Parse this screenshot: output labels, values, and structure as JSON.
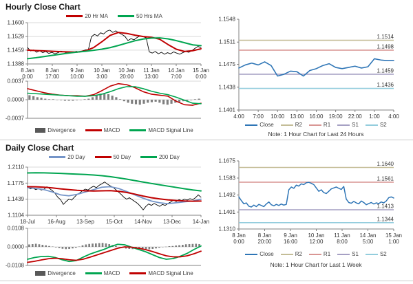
{
  "page": {
    "hourly_title": "Hourly Close Chart",
    "daily_title": "Daily Close Chart",
    "note_24h": "Note: 1 Hour Chart for Last 24 Hours",
    "note_1week": "Note: 1 Hour Chart for Last 1 Week"
  },
  "colors": {
    "price_line": "#000000",
    "red": "#C00000",
    "green": "#00A550",
    "ma20_blue": "#7494C8",
    "close_blue": "#2E75B6",
    "r2_olive": "#C4BD97",
    "r1_pink": "#D99694",
    "s1_purple": "#A6A0C4",
    "s2_cyan": "#93CDDD",
    "divergence_gray": "#7F7F7F",
    "grid": "#D9D9D9",
    "axis": "#808080",
    "label_text": "#333333"
  },
  "chart_data": {
    "hourly_price": {
      "type": "line",
      "title": "Hourly Close Chart",
      "ylim": [
        1.1388,
        1.16
      ],
      "grid": true,
      "yticks": [
        {
          "label": "1.1600",
          "value": 1.16
        },
        {
          "label": "1.1529",
          "value": 1.1529
        },
        {
          "label": "1.1459",
          "value": 1.1459
        },
        {
          "label": "1.1388",
          "value": 1.1388
        }
      ],
      "xticks": [
        [
          "8 Jan",
          "0:00"
        ],
        [
          "8 Jan",
          "17:00"
        ],
        [
          "9 Jan",
          "10:00"
        ],
        [
          "10 Jan",
          "3:00"
        ],
        [
          "10 Jan",
          "20:00"
        ],
        [
          "11 Jan",
          "13:00"
        ],
        [
          "14 Jan",
          "7:00"
        ],
        [
          "15 Jan",
          "0:00"
        ]
      ],
      "series": [
        {
          "name": "Close",
          "color": "#000000",
          "width": 0.9,
          "values": [
            1.1472,
            1.1455,
            1.146,
            1.1448,
            1.1456,
            1.1446,
            1.1452,
            1.1442,
            1.1448,
            1.144,
            1.1446,
            1.1454,
            1.145,
            1.1444,
            1.145,
            1.1446,
            1.1453,
            1.1448,
            1.1455,
            1.146,
            1.1462,
            1.1528,
            1.154,
            1.1532,
            1.1548,
            1.1542,
            1.1556,
            1.1562,
            1.155,
            1.1558,
            1.1548,
            1.154,
            1.153,
            1.1508,
            1.1518,
            1.1512,
            1.1524,
            1.1532,
            1.1528,
            1.1522,
            1.145,
            1.1444,
            1.1452,
            1.144,
            1.1448,
            1.1438,
            1.1446,
            1.144,
            1.145,
            1.1444,
            1.1438,
            1.1446,
            1.1452,
            1.1448,
            1.1456,
            1.1468,
            1.1478,
            1.1472
          ]
        },
        {
          "name": "20 Hr MA",
          "color": "#C00000",
          "width": 2,
          "values": [
            1.1459,
            1.1457,
            1.1455,
            1.1453,
            1.1451,
            1.145,
            1.1449,
            1.1455,
            1.1472,
            1.1502,
            1.1535,
            1.155,
            1.1545,
            1.1536,
            1.1529,
            1.1525,
            1.1515,
            1.1488,
            1.1464,
            1.1452,
            1.1456,
            1.1466
          ]
        },
        {
          "name": "50 Hrs MA",
          "color": "#00A550",
          "width": 2,
          "values": [
            1.1415,
            1.142,
            1.1426,
            1.1432,
            1.1438,
            1.1444,
            1.1449,
            1.1453,
            1.1458,
            1.1464,
            1.1472,
            1.1483,
            1.1495,
            1.1507,
            1.1516,
            1.1521,
            1.1522,
            1.1517,
            1.1508,
            1.1497,
            1.1486,
            1.1482
          ]
        }
      ]
    },
    "hourly_macd": {
      "type": "line+bar",
      "ylim": [
        -0.0037,
        0.0037
      ],
      "grid": true,
      "yticks": [
        {
          "label": "0.0037",
          "value": 0.0037
        },
        {
          "label": "0.0000",
          "value": 0.0
        },
        {
          "label": "-0.0037",
          "value": -0.0037
        }
      ],
      "xticks": [],
      "bars": {
        "name": "Divergence",
        "color": "#7F7F7F",
        "swatch": "#595959",
        "values": [
          0.0009,
          0.0007,
          0.0005,
          0.0004,
          0.0002,
          0.0001,
          0.0001,
          0.0,
          -0.0001,
          -0.0002,
          -0.0002,
          -0.0002,
          -0.0001,
          0.0,
          0.0001,
          0.0002,
          0.0005,
          0.0009,
          0.0012,
          0.0013,
          0.0011,
          0.0008,
          0.0005,
          0.0001,
          -0.0003,
          -0.0006,
          -0.0008,
          -0.0009,
          -0.001,
          -0.0008,
          -0.0006,
          -0.0005,
          -0.0004,
          -0.0006,
          -0.0009,
          -0.001,
          -0.0008,
          -0.0006,
          -0.0005,
          -0.0003,
          -0.0002,
          -0.0001,
          0.0001,
          0.0002
        ]
      },
      "series": [
        {
          "name": "MACD",
          "color": "#C00000",
          "width": 1.6,
          "values": [
            0.0022,
            0.0018,
            0.0014,
            0.0011,
            0.0009,
            0.0008,
            0.0008,
            0.0007,
            0.001,
            0.0018,
            0.0027,
            0.0032,
            0.003,
            0.0024,
            0.0016,
            0.0011,
            0.0009,
            0.0007,
            -0.0003,
            -0.001,
            -0.0011,
            -0.0007
          ]
        },
        {
          "name": "MACD Signal Line",
          "color": "#00A550",
          "width": 1.6,
          "values": [
            0.0013,
            0.0012,
            0.0011,
            0.001,
            0.0009,
            0.0008,
            0.0007,
            0.0007,
            0.0008,
            0.0011,
            0.0016,
            0.0022,
            0.0026,
            0.0026,
            0.0022,
            0.0017,
            0.0013,
            0.001,
            0.0005,
            -0.0001,
            -0.0007,
            -0.0008
          ]
        }
      ]
    },
    "last_24_hours": {
      "type": "line",
      "note": "Note: 1 Hour Chart for Last 24 Hours",
      "ylim": [
        1.1401,
        1.1548
      ],
      "grid": false,
      "yticks": [
        {
          "label": "1.1548",
          "value": 1.1548
        },
        {
          "label": "1.1511",
          "value": 1.1511
        },
        {
          "label": "1.1475",
          "value": 1.1475
        },
        {
          "label": "1.1438",
          "value": 1.1438
        },
        {
          "label": "1.1401",
          "value": 1.1401
        }
      ],
      "xticks": [
        "4:00",
        "7:00",
        "10:00",
        "13:00",
        "16:00",
        "19:00",
        "22:00",
        "1:00",
        "4:00"
      ],
      "levels": [
        {
          "name": "R2",
          "label": "1.1514",
          "value": 1.1514,
          "color": "#C4BD97"
        },
        {
          "name": "R1",
          "label": "1.1498",
          "value": 1.1498,
          "color": "#D99694"
        },
        {
          "name": "S1",
          "label": "1.1459",
          "value": 1.1459,
          "color": "#A6A0C4"
        },
        {
          "name": "S2",
          "label": "1.1436",
          "value": 1.1436,
          "color": "#93CDDD"
        }
      ],
      "series": [
        {
          "name": "Close",
          "color": "#2E75B6",
          "width": 1.6,
          "values": [
            1.1469,
            1.1474,
            1.1477,
            1.1474,
            1.1479,
            1.1473,
            1.1456,
            1.1459,
            1.1464,
            1.1463,
            1.1456,
            1.1465,
            1.1468,
            1.1473,
            1.1476,
            1.147,
            1.1468,
            1.147,
            1.1472,
            1.1469,
            1.1471,
            1.1484,
            1.1482,
            1.1481,
            1.1481
          ]
        }
      ]
    },
    "daily_price": {
      "type": "line",
      "title": "Daily Close Chart",
      "ylim": [
        1.1104,
        1.211
      ],
      "grid": true,
      "yticks": [
        {
          "label": "1.2110",
          "value": 1.211
        },
        {
          "label": "1.1775",
          "value": 1.1775
        },
        {
          "label": "1.1439",
          "value": 1.1439
        },
        {
          "label": "1.1104",
          "value": 1.1104
        }
      ],
      "xticks": [
        "18-Jul",
        "16-Aug",
        "13-Sep",
        "15-Oct",
        "14-Nov",
        "13-Dec",
        "14-Jan"
      ],
      "series": [
        {
          "name": "Close",
          "color": "#000000",
          "width": 0.9,
          "values": [
            1.169,
            1.1655,
            1.167,
            1.164,
            1.166,
            1.163,
            1.165,
            1.17,
            1.166,
            1.162,
            1.156,
            1.148,
            1.143,
            1.133,
            1.139,
            1.144,
            1.142,
            1.148,
            1.154,
            1.157,
            1.162,
            1.165,
            1.163,
            1.168,
            1.171,
            1.168,
            1.173,
            1.176,
            1.18,
            1.1755,
            1.172,
            1.169,
            1.164,
            1.159,
            1.154,
            1.148,
            1.144,
            1.147,
            1.143,
            1.139,
            1.135,
            1.129,
            1.1215,
            1.129,
            1.134,
            1.131,
            1.135,
            1.132,
            1.129,
            1.133,
            1.131,
            1.135,
            1.138,
            1.142,
            1.139,
            1.143,
            1.141,
            1.144,
            1.142,
            1.145,
            1.143,
            1.147,
            1.153,
            1.148
          ]
        },
        {
          "name": "20 Day",
          "color": "#7494C8",
          "width": 1.8,
          "values": [
            1.168,
            1.1665,
            1.164,
            1.159,
            1.153,
            1.151,
            1.154,
            1.159,
            1.164,
            1.169,
            1.17,
            1.1665,
            1.16,
            1.153,
            1.146,
            1.14,
            1.1365,
            1.1345,
            1.1365,
            1.1385,
            1.14,
            1.144
          ]
        },
        {
          "name": "50 Day",
          "color": "#C00000",
          "width": 2,
          "values": [
            1.17,
            1.1698,
            1.169,
            1.1675,
            1.1655,
            1.164,
            1.1625,
            1.1615,
            1.161,
            1.1615,
            1.1618,
            1.1605,
            1.158,
            1.1545,
            1.1505,
            1.147,
            1.1445,
            1.1425,
            1.1412,
            1.1402,
            1.1396,
            1.14
          ]
        },
        {
          "name": "200 Day",
          "color": "#00A550",
          "width": 2,
          "values": [
            1.1988,
            1.1992,
            1.199,
            1.1985,
            1.1978,
            1.197,
            1.1962,
            1.1955,
            1.1945,
            1.193,
            1.191,
            1.1885,
            1.1858,
            1.1828,
            1.1798,
            1.1768,
            1.174,
            1.1712,
            1.1685,
            1.1658,
            1.1632,
            1.1612
          ]
        }
      ]
    },
    "daily_macd": {
      "type": "line+bar",
      "ylim": [
        -0.0108,
        0.0108
      ],
      "grid": true,
      "yticks": [
        {
          "label": "0.0108",
          "value": 0.0108
        },
        {
          "label": "0.0000",
          "value": 0.0
        },
        {
          "label": "-0.0108",
          "value": -0.0108
        }
      ],
      "xticks": [],
      "bars": {
        "name": "Divergence",
        "color": "#7F7F7F",
        "swatch": "#595959",
        "values": [
          0.0014,
          0.0016,
          0.0018,
          0.0015,
          0.0012,
          0.0009,
          0.0005,
          0.0002,
          -0.0003,
          -0.0007,
          -0.0011,
          -0.0013,
          -0.0012,
          -0.0009,
          -0.0005,
          0.0002,
          0.0009,
          0.0014,
          0.0017,
          0.0019,
          0.002,
          0.0022,
          0.0023,
          0.002,
          0.0016,
          0.0011,
          0.0005,
          -0.0001,
          -0.0006,
          -0.001,
          -0.0012,
          -0.0013,
          -0.0012,
          -0.001,
          -0.0011,
          -0.0013,
          -0.0014,
          -0.0012,
          -0.0009,
          -0.0005,
          -0.0002,
          0.0001,
          0.0004,
          0.0005,
          0.0008,
          0.001,
          0.0012,
          0.0015,
          0.0016,
          0.0017,
          0.0018,
          0.0016
        ]
      },
      "series": [
        {
          "name": "MACD",
          "color": "#00A550",
          "width": 1.8,
          "values": [
            -0.0072,
            -0.0062,
            -0.0056,
            -0.0055,
            -0.0062,
            -0.0075,
            -0.0085,
            -0.008,
            -0.006,
            -0.0042,
            -0.0028,
            -0.0015,
            0.0002,
            0.0015,
            0.0012,
            -0.0002,
            -0.0015,
            -0.0028,
            -0.0045,
            -0.0062,
            -0.0072,
            -0.0068,
            -0.0055,
            -0.0038,
            -0.0015,
            0.0005
          ]
        },
        {
          "name": "MACD Signal Line",
          "color": "#C00000",
          "width": 1.8,
          "values": [
            -0.009,
            -0.0084,
            -0.0076,
            -0.0069,
            -0.0066,
            -0.0069,
            -0.0075,
            -0.0078,
            -0.0072,
            -0.006,
            -0.0047,
            -0.0034,
            -0.0021,
            -0.0008,
            0.0,
            -0.0002,
            -0.0008,
            -0.0016,
            -0.0027,
            -0.004,
            -0.0052,
            -0.0058,
            -0.0058,
            -0.0052,
            -0.004,
            -0.0025
          ]
        }
      ]
    },
    "last_1_week": {
      "type": "line",
      "note": "Note: 1 Hour Chart for Last 1 Week",
      "ylim": [
        1.131,
        1.1675
      ],
      "grid": false,
      "yticks": [
        {
          "label": "1.1675",
          "value": 1.1675
        },
        {
          "label": "1.1583",
          "value": 1.1583
        },
        {
          "label": "1.1492",
          "value": 1.1492
        },
        {
          "label": "1.1401",
          "value": 1.1401
        },
        {
          "label": "1.1310",
          "value": 1.131
        }
      ],
      "xticks": [
        [
          "8 Jan",
          "0:00"
        ],
        [
          "8 Jan",
          "20:00"
        ],
        [
          "9 Jan",
          "16:00"
        ],
        [
          "10 Jan",
          "12:00"
        ],
        [
          "11 Jan",
          "8:00"
        ],
        [
          "14 Jan",
          "5:00"
        ],
        [
          "15 Jan",
          "1:00"
        ]
      ],
      "levels": [
        {
          "name": "R2",
          "label": "1.1640",
          "value": 1.164,
          "color": "#C4BD97"
        },
        {
          "name": "R1",
          "label": "1.1561",
          "value": 1.1561,
          "color": "#D99694"
        },
        {
          "name": "S1",
          "label": "1.1413",
          "value": 1.1413,
          "color": "#A6A0C4"
        },
        {
          "name": "S2",
          "label": "1.1344",
          "value": 1.1344,
          "color": "#93CDDD"
        }
      ],
      "series": [
        {
          "name": "Close",
          "color": "#2E75B6",
          "width": 1.5,
          "values": [
            1.1482,
            1.1462,
            1.1445,
            1.145,
            1.1432,
            1.1428,
            1.1438,
            1.143,
            1.1442,
            1.1436,
            1.143,
            1.1444,
            1.1455,
            1.144,
            1.1434,
            1.1442,
            1.1436,
            1.1444,
            1.1438,
            1.1442,
            1.152,
            1.1535,
            1.1528,
            1.1545,
            1.154,
            1.1552,
            1.1548,
            1.1558,
            1.156,
            1.1555,
            1.1548,
            1.153,
            1.1512,
            1.152,
            1.1505,
            1.15,
            1.1512,
            1.1525,
            1.153,
            1.1535,
            1.1528,
            1.1522,
            1.1538,
            1.147,
            1.1452,
            1.1448,
            1.1458,
            1.145,
            1.1445,
            1.146,
            1.1452,
            1.144,
            1.1446,
            1.1452,
            1.1444,
            1.145,
            1.1446,
            1.1455,
            1.145,
            1.146,
            1.1478,
            1.1482,
            1.1476
          ]
        }
      ]
    }
  }
}
